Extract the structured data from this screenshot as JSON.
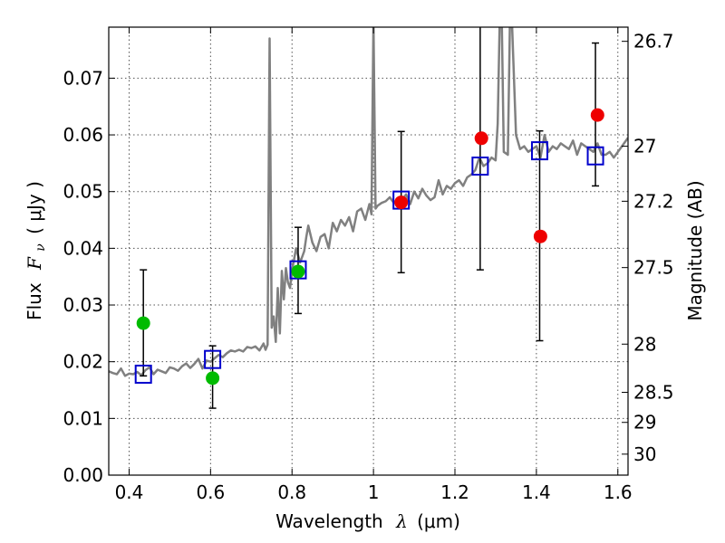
{
  "chart_data": {
    "type": "scatter",
    "title": "",
    "xlabel": {
      "text": "Wavelength",
      "symbol": "λ",
      "unit": "(μm)"
    },
    "ylabel": {
      "text": "Flux",
      "symbol": "F",
      "subscript": "ν",
      "unit": "( μJy )"
    },
    "y2label": "Magnitude (AB)",
    "xlim": [
      0.35,
      1.625
    ],
    "ylim": [
      0.0,
      0.079
    ],
    "grid": true,
    "x_ticks": [
      0.4,
      0.6,
      0.8,
      1.0,
      1.2,
      1.4,
      1.6
    ],
    "x_tick_labels": [
      "0.4",
      "0.6",
      "0.8",
      "1",
      "1.2",
      "1.4",
      "1.6"
    ],
    "y_ticks": [
      0.0,
      0.01,
      0.02,
      0.03,
      0.04,
      0.05,
      0.06,
      0.07
    ],
    "y_tick_labels": [
      "0.00",
      "0.01",
      "0.02",
      "0.03",
      "0.04",
      "0.05",
      "0.06",
      "0.07"
    ],
    "magnitude_ticks": [
      {
        "label": "26.7",
        "flux": 0.0765
      },
      {
        "label": "27",
        "flux": 0.058
      },
      {
        "label": "27.2",
        "flux": 0.0483
      },
      {
        "label": "27.5",
        "flux": 0.0366
      },
      {
        "label": "28",
        "flux": 0.0231
      },
      {
        "label": "28.5",
        "flux": 0.0146
      },
      {
        "label": "29",
        "flux": 0.0093
      },
      {
        "label": "30",
        "flux": 0.0037
      }
    ],
    "colors": {
      "template": "#808080",
      "model_box": "#0000cc",
      "red": "#ee0000",
      "green": "#00bb00",
      "errorbar": "#000000",
      "grid": "#555555"
    },
    "series": [
      {
        "name": "template spectrum",
        "type": "line",
        "x": [
          0.35,
          0.36,
          0.37,
          0.38,
          0.39,
          0.4,
          0.41,
          0.42,
          0.43,
          0.44,
          0.45,
          0.46,
          0.47,
          0.48,
          0.49,
          0.5,
          0.51,
          0.52,
          0.53,
          0.54,
          0.55,
          0.56,
          0.57,
          0.58,
          0.59,
          0.6,
          0.61,
          0.62,
          0.63,
          0.64,
          0.65,
          0.66,
          0.67,
          0.68,
          0.69,
          0.7,
          0.71,
          0.72,
          0.73,
          0.735,
          0.74,
          0.745,
          0.75,
          0.755,
          0.76,
          0.765,
          0.77,
          0.775,
          0.78,
          0.785,
          0.79,
          0.795,
          0.8,
          0.81,
          0.82,
          0.83,
          0.835,
          0.84,
          0.85,
          0.86,
          0.87,
          0.88,
          0.89,
          0.9,
          0.91,
          0.92,
          0.93,
          0.94,
          0.95,
          0.96,
          0.97,
          0.98,
          0.99,
          0.995,
          1.0,
          1.005,
          1.01,
          1.02,
          1.03,
          1.04,
          1.05,
          1.06,
          1.07,
          1.08,
          1.09,
          1.1,
          1.11,
          1.12,
          1.13,
          1.14,
          1.15,
          1.16,
          1.17,
          1.18,
          1.19,
          1.2,
          1.21,
          1.22,
          1.23,
          1.24,
          1.25,
          1.26,
          1.27,
          1.28,
          1.29,
          1.3,
          1.305,
          1.31,
          1.315,
          1.32,
          1.33,
          1.335,
          1.34,
          1.35,
          1.36,
          1.37,
          1.38,
          1.39,
          1.4,
          1.41,
          1.42,
          1.43,
          1.44,
          1.45,
          1.46,
          1.47,
          1.48,
          1.49,
          1.5,
          1.51,
          1.52,
          1.53,
          1.54,
          1.55,
          1.56,
          1.57,
          1.58,
          1.59,
          1.6,
          1.61,
          1.625
        ],
        "y": [
          0.0183,
          0.018,
          0.0178,
          0.0188,
          0.0175,
          0.0179,
          0.0178,
          0.0182,
          0.0176,
          0.0185,
          0.019,
          0.0178,
          0.0186,
          0.0183,
          0.018,
          0.019,
          0.0188,
          0.0184,
          0.0192,
          0.0197,
          0.0189,
          0.0196,
          0.0205,
          0.0188,
          0.0202,
          0.02,
          0.0206,
          0.0212,
          0.0208,
          0.0215,
          0.022,
          0.0218,
          0.0221,
          0.0218,
          0.0226,
          0.0224,
          0.0227,
          0.022,
          0.0232,
          0.0221,
          0.023,
          0.077,
          0.026,
          0.028,
          0.0235,
          0.033,
          0.025,
          0.036,
          0.031,
          0.0365,
          0.034,
          0.033,
          0.036,
          0.04,
          0.0375,
          0.0395,
          0.042,
          0.044,
          0.041,
          0.0395,
          0.042,
          0.0425,
          0.04,
          0.0445,
          0.043,
          0.045,
          0.044,
          0.0455,
          0.043,
          0.0465,
          0.047,
          0.045,
          0.0478,
          0.046,
          0.08,
          0.047,
          0.0475,
          0.048,
          0.0483,
          0.049,
          0.048,
          0.0488,
          0.0485,
          0.0495,
          0.0478,
          0.05,
          0.0488,
          0.0505,
          0.0493,
          0.0485,
          0.049,
          0.052,
          0.0495,
          0.051,
          0.0505,
          0.0515,
          0.052,
          0.051,
          0.0525,
          0.053,
          0.0538,
          0.056,
          0.0545,
          0.055,
          0.056,
          0.0555,
          0.062,
          0.08,
          0.08,
          0.057,
          0.0565,
          0.08,
          0.08,
          0.06,
          0.0575,
          0.058,
          0.057,
          0.0575,
          0.058,
          0.056,
          0.06,
          0.057,
          0.058,
          0.0575,
          0.0585,
          0.058,
          0.0575,
          0.059,
          0.0565,
          0.0585,
          0.058,
          0.0575,
          0.057,
          0.0585,
          0.0565,
          0.0565,
          0.057,
          0.056,
          0.057,
          0.058,
          0.0595
        ]
      },
      {
        "name": "model photometry",
        "type": "square",
        "x": [
          0.435,
          0.605,
          0.815,
          1.068,
          1.262,
          1.408,
          1.545
        ],
        "y": [
          0.0178,
          0.0204,
          0.0362,
          0.0485,
          0.0545,
          0.0572,
          0.0563
        ]
      },
      {
        "name": "observed detections",
        "type": "circle",
        "color": "red",
        "x": [
          1.068,
          1.265,
          1.41,
          1.55
        ],
        "y": [
          0.0481,
          0.0594,
          0.0421,
          0.0635
        ]
      },
      {
        "name": "observed low-significance",
        "type": "circle",
        "color": "green",
        "x": [
          0.435,
          0.605,
          0.815
        ],
        "y": [
          0.0268,
          0.0171,
          0.0359
        ]
      },
      {
        "name": "error bars",
        "type": "errorbar",
        "x": [
          0.435,
          0.605,
          0.815,
          1.068,
          1.262,
          1.408,
          1.545
        ],
        "low": [
          0.0175,
          0.0118,
          0.0285,
          0.0357,
          0.0362,
          0.0237,
          0.051
        ],
        "high": [
          0.0362,
          0.0228,
          0.0437,
          0.0606,
          0.08,
          0.0607,
          0.0762
        ]
      }
    ]
  }
}
